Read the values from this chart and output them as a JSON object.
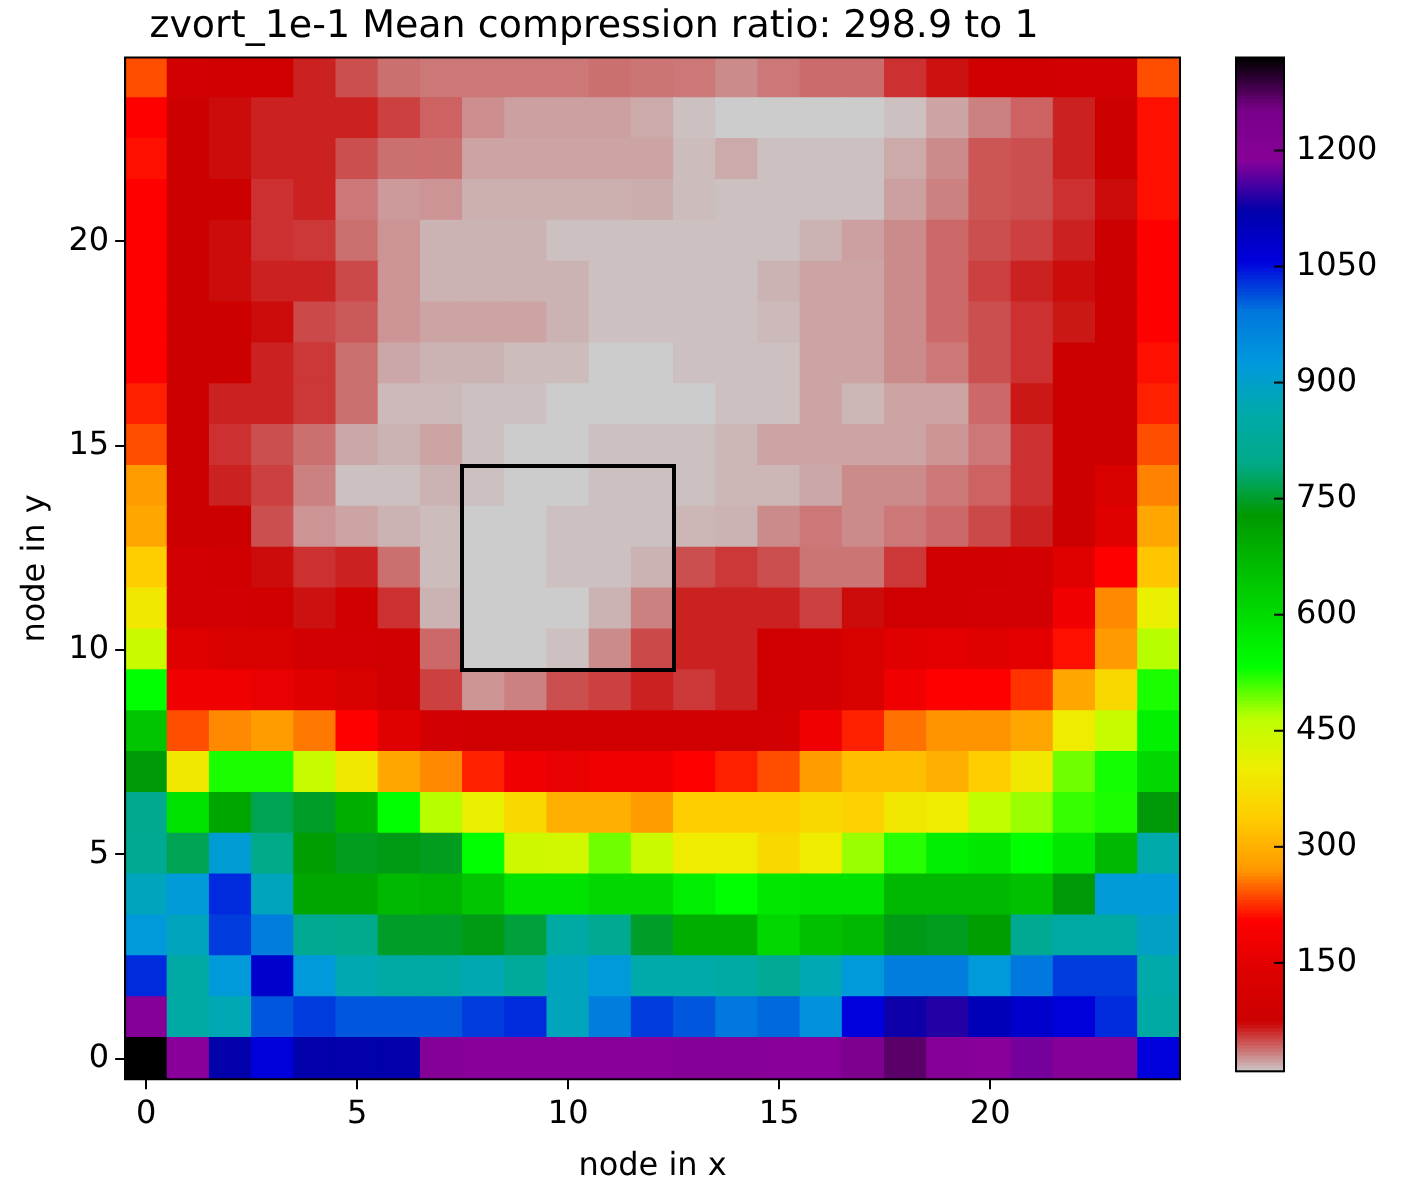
{
  "chart_data": {
    "type": "heatmap",
    "title": "zvort_1e-1 Mean compression ratio: 298.9 to 1",
    "xlabel": "node in x",
    "ylabel": "node in y",
    "categories": [
      "0",
      null,
      null,
      null,
      null,
      "5",
      null,
      null,
      null,
      null,
      "10",
      null,
      null,
      null,
      null,
      "15",
      null,
      null,
      null,
      null,
      "20",
      null,
      null,
      null,
      null
    ],
    "y_categories": [
      null,
      null,
      null,
      null,
      "20",
      null,
      null,
      null,
      null,
      "15",
      null,
      null,
      null,
      null,
      "10",
      null,
      null,
      null,
      null,
      "5",
      null,
      null,
      null,
      null,
      "0"
    ],
    "clim": [
      10,
      1320
    ],
    "cticks": [
      150,
      300,
      450,
      600,
      750,
      900,
      1050,
      1200
    ],
    "cells": [
      [
        240,
        100,
        90,
        90,
        65,
        50,
        40,
        37,
        37,
        37,
        37,
        40,
        38,
        37,
        31,
        37,
        41,
        41,
        60,
        70,
        90,
        90,
        100,
        100,
        240
      ],
      [
        206,
        80,
        72,
        65,
        65,
        65,
        55,
        44,
        30,
        24,
        24,
        24,
        21,
        14,
        10,
        10,
        10,
        10,
        14,
        23,
        34,
        44,
        65,
        78,
        213
      ],
      [
        213,
        78,
        72,
        65,
        65,
        50,
        40,
        40,
        23,
        23,
        23,
        23,
        23,
        15,
        21,
        14,
        14,
        14,
        21,
        31,
        48,
        50,
        65,
        78,
        213
      ],
      [
        206,
        78,
        78,
        60,
        65,
        37,
        26,
        28,
        19,
        19,
        19,
        19,
        20,
        15,
        14,
        14,
        14,
        14,
        24,
        34,
        48,
        50,
        60,
        72,
        213
      ],
      [
        206,
        78,
        72,
        60,
        58,
        40,
        28,
        18,
        18,
        18,
        14,
        14,
        14,
        14,
        14,
        14,
        18,
        24,
        31,
        42,
        50,
        55,
        65,
        76,
        206
      ],
      [
        206,
        78,
        72,
        65,
        65,
        52,
        28,
        18,
        18,
        18,
        18,
        14,
        14,
        14,
        14,
        18,
        23,
        23,
        31,
        42,
        55,
        65,
        72,
        76,
        206
      ],
      [
        206,
        78,
        78,
        72,
        52,
        47,
        28,
        23,
        23,
        23,
        18,
        14,
        14,
        14,
        14,
        16,
        23,
        23,
        31,
        42,
        50,
        60,
        68,
        78,
        206
      ],
      [
        206,
        78,
        78,
        65,
        58,
        40,
        22,
        18,
        18,
        15,
        15,
        10,
        10,
        14,
        14,
        14,
        23,
        23,
        31,
        37,
        50,
        60,
        78,
        78,
        213
      ],
      [
        220,
        78,
        65,
        65,
        58,
        40,
        16,
        16,
        14,
        14,
        10,
        10,
        10,
        10,
        14,
        14,
        23,
        17,
        23,
        23,
        42,
        68,
        78,
        78,
        220
      ],
      [
        240,
        78,
        60,
        50,
        40,
        22,
        18,
        23,
        14,
        10,
        10,
        14,
        14,
        14,
        17,
        23,
        23,
        23,
        23,
        28,
        37,
        60,
        78,
        78,
        240
      ],
      [
        276,
        78,
        65,
        55,
        34,
        14,
        14,
        18,
        14,
        10,
        10,
        14,
        14,
        14,
        17,
        17,
        22,
        31,
        31,
        37,
        44,
        60,
        78,
        125,
        262
      ],
      [
        290,
        78,
        78,
        50,
        28,
        23,
        18,
        15,
        10,
        10,
        14,
        14,
        14,
        17,
        18,
        31,
        37,
        31,
        37,
        42,
        52,
        65,
        78,
        147,
        290
      ],
      [
        342,
        100,
        90,
        72,
        60,
        65,
        40,
        15,
        10,
        10,
        14,
        14,
        18,
        50,
        58,
        50,
        38,
        38,
        58,
        90,
        90,
        100,
        147,
        206,
        330
      ],
      [
        390,
        100,
        100,
        90,
        70,
        90,
        60,
        18,
        10,
        10,
        10,
        18,
        34,
        65,
        65,
        65,
        55,
        72,
        90,
        90,
        100,
        100,
        177,
        265,
        410
      ],
      [
        450,
        147,
        125,
        125,
        100,
        100,
        90,
        42,
        10,
        10,
        14,
        31,
        52,
        65,
        65,
        90,
        100,
        125,
        147,
        155,
        147,
        155,
        213,
        275,
        470
      ],
      [
        534,
        177,
        177,
        165,
        147,
        125,
        90,
        55,
        28,
        34,
        50,
        55,
        65,
        58,
        65,
        90,
        100,
        125,
        177,
        206,
        206,
        228,
        290,
        360,
        525
      ],
      [
        645,
        240,
        265,
        276,
        258,
        206,
        147,
        100,
        90,
        90,
        90,
        90,
        90,
        90,
        90,
        100,
        177,
        220,
        255,
        270,
        270,
        290,
        400,
        455,
        560
      ],
      [
        735,
        390,
        525,
        525,
        455,
        390,
        290,
        265,
        220,
        177,
        165,
        177,
        177,
        206,
        220,
        240,
        276,
        321,
        321,
        300,
        342,
        390,
        495,
        528,
        610
      ],
      [
        810,
        590,
        705,
        770,
        750,
        690,
        534,
        470,
        410,
        360,
        300,
        300,
        276,
        342,
        342,
        342,
        360,
        350,
        390,
        400,
        460,
        480,
        515,
        525,
        735
      ],
      [
        815,
        770,
        915,
        796,
        720,
        745,
        740,
        745,
        534,
        445,
        440,
        495,
        450,
        400,
        400,
        360,
        400,
        480,
        520,
        565,
        580,
        534,
        580,
        670,
        862
      ],
      [
        885,
        920,
        1035,
        885,
        705,
        705,
        670,
        680,
        645,
        590,
        590,
        610,
        610,
        565,
        534,
        580,
        590,
        590,
        670,
        670,
        670,
        655,
        735,
        920,
        920
      ],
      [
        925,
        885,
        1025,
        980,
        815,
        805,
        750,
        750,
        740,
        760,
        850,
        815,
        750,
        690,
        690,
        610,
        655,
        670,
        740,
        745,
        720,
        815,
        850,
        850,
        895
      ],
      [
        1035,
        850,
        925,
        1080,
        925,
        870,
        850,
        850,
        870,
        830,
        885,
        925,
        862,
        862,
        850,
        820,
        875,
        925,
        980,
        980,
        925,
        990,
        1025,
        1025,
        862
      ],
      [
        1200,
        850,
        875,
        1010,
        1025,
        1010,
        1010,
        1010,
        1025,
        1035,
        885,
        980,
        1025,
        1010,
        990,
        1000,
        940,
        1058,
        1130,
        1140,
        1105,
        1080,
        1060,
        1035,
        850
      ],
      [
        1320,
        1190,
        1124,
        1060,
        1124,
        1124,
        1124,
        1200,
        1190,
        1190,
        1190,
        1190,
        1190,
        1200,
        1195,
        1190,
        1190,
        1230,
        1270,
        1195,
        1190,
        1180,
        1200,
        1200,
        1058
      ]
    ]
  }
}
